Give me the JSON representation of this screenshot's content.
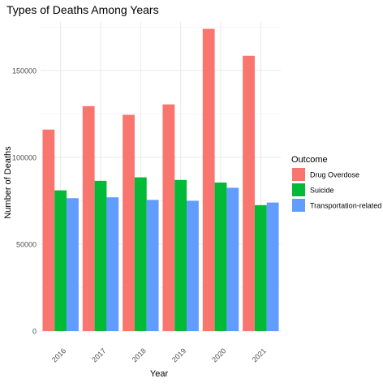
{
  "chart_data": {
    "type": "bar",
    "title": "Types of Deaths Among Years",
    "xlabel": "Year",
    "ylabel": "Number of Deaths",
    "categories": [
      "2016",
      "2017",
      "2018",
      "2019",
      "2020",
      "2021"
    ],
    "ylim": [
      0,
      178000
    ],
    "yticks": [
      0,
      50000,
      100000,
      150000
    ],
    "ytick_labels": [
      "0",
      "50000",
      "100000",
      "150000"
    ],
    "grid": true,
    "legend": {
      "title": "Outcome",
      "placement": "right"
    },
    "series": [
      {
        "name": "Drug Overdose",
        "color": "#F8766D",
        "values": [
          116000,
          129500,
          124500,
          130500,
          174000,
          158500
        ]
      },
      {
        "name": "Suicide",
        "color": "#00BA38",
        "values": [
          81000,
          86500,
          88500,
          87000,
          85500,
          72500
        ]
      },
      {
        "name": "Transportation-related",
        "color": "#619CFF",
        "values": [
          76500,
          77000,
          75500,
          75000,
          82500,
          74000
        ]
      }
    ]
  }
}
